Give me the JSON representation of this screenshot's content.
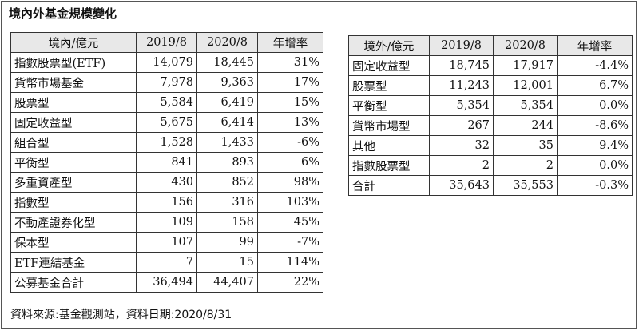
{
  "title": "境內外基金規模變化",
  "domestic": {
    "headers": [
      "境內/億元",
      "2019/8",
      "2020/8",
      "年增率"
    ],
    "rows": [
      [
        "指數股票型(ETF)",
        "14,079",
        "18,445",
        "31%"
      ],
      [
        "貨幣市場基金",
        "7,978",
        "9,363",
        "17%"
      ],
      [
        "股票型",
        "5,584",
        "6,419",
        "15%"
      ],
      [
        "固定收益型",
        "5,675",
        "6,414",
        "13%"
      ],
      [
        "組合型",
        "1,528",
        "1,433",
        "-6%"
      ],
      [
        "平衡型",
        "841",
        "893",
        "6%"
      ],
      [
        "多重資產型",
        "430",
        "852",
        "98%"
      ],
      [
        "指數型",
        "156",
        "316",
        "103%"
      ],
      [
        "不動產證券化型",
        "109",
        "158",
        "45%"
      ],
      [
        "保本型",
        "107",
        "99",
        "-7%"
      ],
      [
        "ETF連結基金",
        "7",
        "15",
        "114%"
      ],
      [
        "公募基金合計",
        "36,494",
        "44,407",
        "22%"
      ]
    ]
  },
  "foreign": {
    "headers": [
      "境外/億元",
      "2019/8",
      "2020/8",
      "年增率"
    ],
    "rows": [
      [
        "固定收益型",
        "18,745",
        "17,917",
        "-4.4%"
      ],
      [
        "股票型",
        "11,243",
        "12,001",
        "6.7%"
      ],
      [
        "平衡型",
        "5,354",
        "5,354",
        "0.0%"
      ],
      [
        "貨幣市場型",
        "267",
        "244",
        "-8.6%"
      ],
      [
        "其他",
        "32",
        "35",
        "9.4%"
      ],
      [
        "指數股票型",
        "2",
        "2",
        "0.0%"
      ],
      [
        "合計",
        "35,643",
        "35,553",
        "-0.3%"
      ]
    ]
  },
  "footer": "資料來源:基金觀測站，資料日期:2020/8/31"
}
